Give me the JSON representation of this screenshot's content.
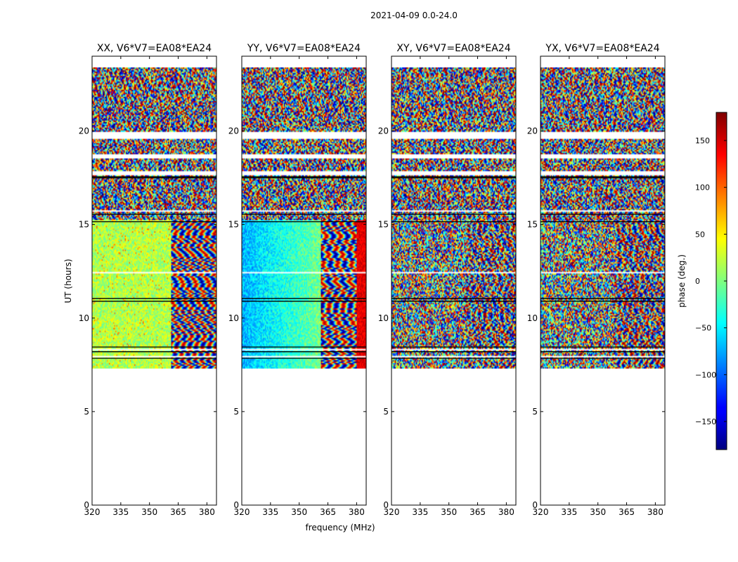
{
  "chart_data": {
    "type": "heatmap",
    "title": "2021-04-09 0.0-24.0",
    "xlabel": "frequency (MHz)",
    "ylabel": "UT (hours)",
    "xlim": [
      320,
      385
    ],
    "ylim": [
      0,
      24
    ],
    "xticks": [
      320,
      335,
      350,
      365,
      380
    ],
    "yticks": [
      0,
      5,
      10,
      15,
      20
    ],
    "panels": [
      {
        "title": "XX, V6*V7=EA08*EA24",
        "pattern": "coherent-yellow-green"
      },
      {
        "title": "YY, V6*V7=EA08*EA24",
        "pattern": "coherent-cyan-blue"
      },
      {
        "title": "XY, V6*V7=EA08*EA24",
        "pattern": "noise"
      },
      {
        "title": "YX, V6*V7=EA08*EA24",
        "pattern": "noise"
      }
    ],
    "data_time_range_hours": [
      7.3,
      23.4
    ],
    "flagged_gaps_hours": [
      [
        17.7,
        17.9
      ],
      [
        18.6,
        18.8
      ],
      [
        19.6,
        20.0
      ],
      [
        15.7,
        15.8
      ],
      [
        12.4,
        12.5
      ],
      [
        8.3,
        8.4
      ],
      [
        7.9,
        8.0
      ]
    ],
    "colorbar": {
      "label": "phase (deg.)",
      "range": [
        -180,
        180
      ],
      "ticks": [
        -150,
        -100,
        -50,
        0,
        50,
        100,
        150
      ],
      "tick_labels": [
        "−150",
        "−100",
        "−50",
        "0",
        "50",
        "100",
        "150"
      ],
      "colormap": "jet"
    }
  }
}
